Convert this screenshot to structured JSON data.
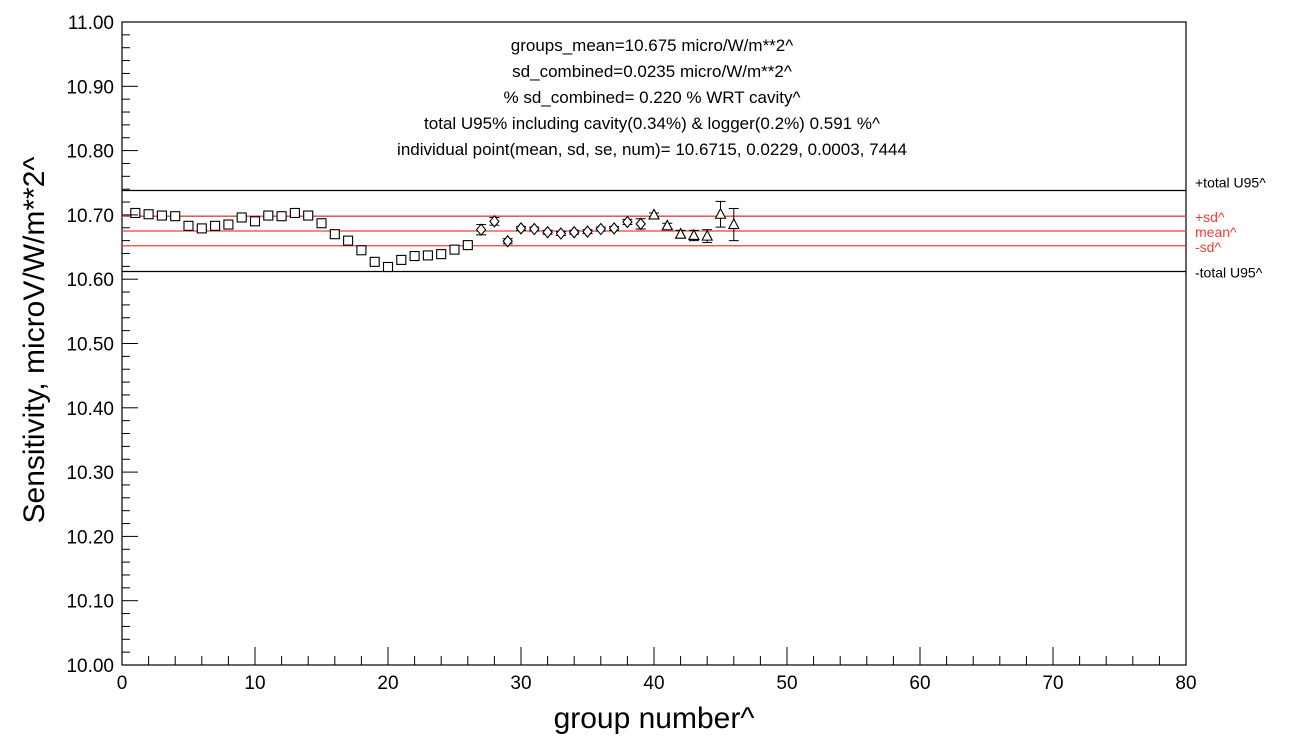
{
  "chart_data": {
    "type": "scatter",
    "xlabel": "group number^",
    "ylabel": "Sensitivity, microV/W/m**2^",
    "xlim": [
      0,
      80
    ],
    "ylim": [
      10.0,
      11.0
    ],
    "x_ticks": [
      "0",
      "10",
      "20",
      "30",
      "40",
      "50",
      "60",
      "70",
      "80"
    ],
    "y_ticks": [
      "10.00",
      "10.10",
      "10.20",
      "10.30",
      "10.40",
      "10.50",
      "10.60",
      "10.70",
      "10.80",
      "10.90",
      "11.00"
    ],
    "grid": false,
    "annotations": [
      "groups_mean=10.675 micro/W/m**2^",
      "sd_combined=0.0235 micro/W/m**2^",
      "% sd_combined= 0.220 % WRT cavity^",
      "total U95% including cavity(0.34%) & logger(0.2%) 0.591 %^",
      "individual point(mean, sd, se, num)= 10.6715,  0.0229,  0.0003,  7444"
    ],
    "reference_lines": [
      {
        "label": "+total U95^",
        "y": 10.738,
        "color": "#000000"
      },
      {
        "label": "+sd^",
        "y": 10.698,
        "color": "#e8433a"
      },
      {
        "label": "mean^",
        "y": 10.675,
        "color": "#e8433a"
      },
      {
        "label": "-sd^",
        "y": 10.652,
        "color": "#e8433a"
      },
      {
        "label": "-total U95^",
        "y": 10.612,
        "color": "#000000"
      }
    ],
    "series": [
      {
        "marker": "square",
        "points": [
          {
            "x": 1,
            "y": 10.703,
            "err": 0.003
          },
          {
            "x": 2,
            "y": 10.701,
            "err": 0.003
          },
          {
            "x": 3,
            "y": 10.699,
            "err": 0.003
          },
          {
            "x": 4,
            "y": 10.698,
            "err": 0.003
          },
          {
            "x": 5,
            "y": 10.683,
            "err": 0.003
          },
          {
            "x": 6,
            "y": 10.679,
            "err": 0.003
          },
          {
            "x": 7,
            "y": 10.683,
            "err": 0.003
          },
          {
            "x": 8,
            "y": 10.685,
            "err": 0.003
          },
          {
            "x": 9,
            "y": 10.696,
            "err": 0.004
          },
          {
            "x": 10,
            "y": 10.69,
            "err": 0.003
          },
          {
            "x": 11,
            "y": 10.699,
            "err": 0.003
          },
          {
            "x": 12,
            "y": 10.698,
            "err": 0.003
          },
          {
            "x": 13,
            "y": 10.703,
            "err": 0.003
          },
          {
            "x": 14,
            "y": 10.699,
            "err": 0.004
          },
          {
            "x": 15,
            "y": 10.687,
            "err": 0.006
          },
          {
            "x": 16,
            "y": 10.67,
            "err": 0.006
          },
          {
            "x": 17,
            "y": 10.66,
            "err": 0.004
          },
          {
            "x": 18,
            "y": 10.645,
            "err": 0.004
          },
          {
            "x": 19,
            "y": 10.627,
            "err": 0.004
          },
          {
            "x": 20,
            "y": 10.619,
            "err": 0.004
          },
          {
            "x": 21,
            "y": 10.63,
            "err": 0.003
          },
          {
            "x": 22,
            "y": 10.636,
            "err": 0.003
          },
          {
            "x": 23,
            "y": 10.637,
            "err": 0.003
          },
          {
            "x": 24,
            "y": 10.639,
            "err": 0.003
          },
          {
            "x": 25,
            "y": 10.646,
            "err": 0.003
          },
          {
            "x": 26,
            "y": 10.653,
            "err": 0.004
          }
        ]
      },
      {
        "marker": "diamond",
        "points": [
          {
            "x": 27,
            "y": 10.677,
            "err": 0.008
          },
          {
            "x": 28,
            "y": 10.69,
            "err": 0.006
          },
          {
            "x": 29,
            "y": 10.659,
            "err": 0.004
          },
          {
            "x": 30,
            "y": 10.679,
            "err": 0.003
          },
          {
            "x": 31,
            "y": 10.678,
            "err": 0.003
          },
          {
            "x": 32,
            "y": 10.673,
            "err": 0.003
          },
          {
            "x": 33,
            "y": 10.671,
            "err": 0.003
          },
          {
            "x": 34,
            "y": 10.673,
            "err": 0.003
          },
          {
            "x": 35,
            "y": 10.674,
            "err": 0.003
          },
          {
            "x": 36,
            "y": 10.678,
            "err": 0.003
          },
          {
            "x": 37,
            "y": 10.679,
            "err": 0.003
          },
          {
            "x": 38,
            "y": 10.689,
            "err": 0.004
          },
          {
            "x": 39,
            "y": 10.686,
            "err": 0.008
          }
        ]
      },
      {
        "marker": "triangle",
        "points": [
          {
            "x": 40,
            "y": 10.7,
            "err": 0.003
          },
          {
            "x": 41,
            "y": 10.683,
            "err": 0.004
          },
          {
            "x": 42,
            "y": 10.67,
            "err": 0.006
          },
          {
            "x": 43,
            "y": 10.668,
            "err": 0.008
          },
          {
            "x": 44,
            "y": 10.667,
            "err": 0.01
          },
          {
            "x": 45,
            "y": 10.701,
            "err": 0.02
          },
          {
            "x": 46,
            "y": 10.685,
            "err": 0.025
          }
        ]
      }
    ]
  }
}
